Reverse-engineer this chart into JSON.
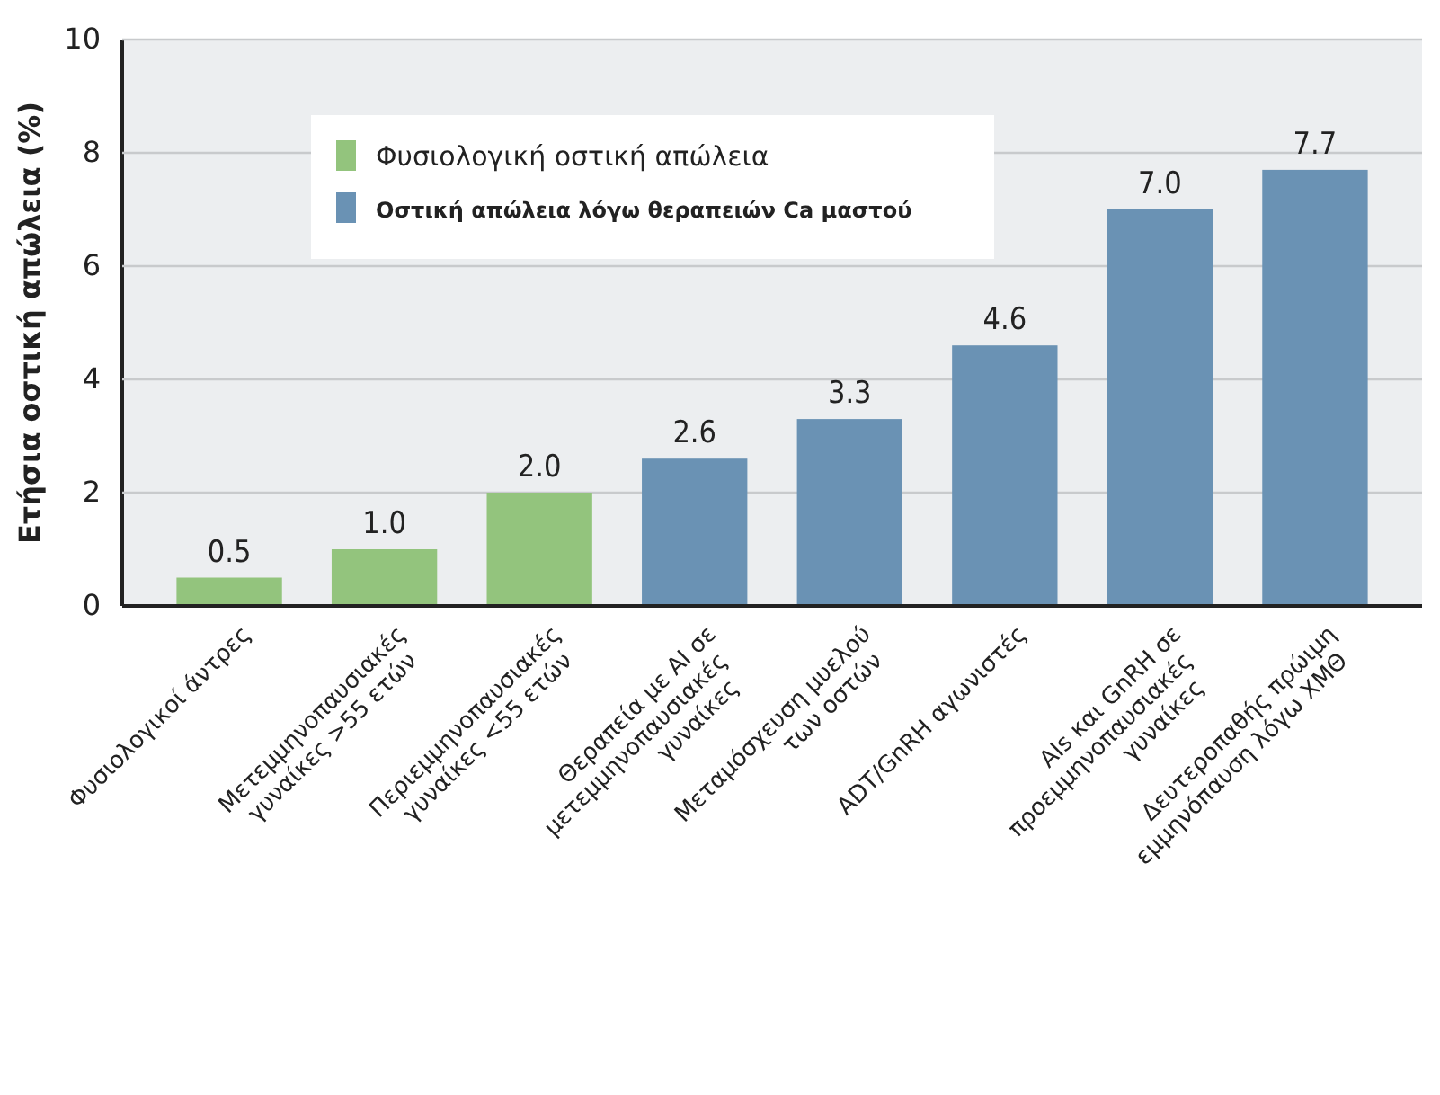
{
  "chart_data": {
    "type": "bar",
    "ylabel": "Ετήσια οστική απώλεια (%)",
    "categories": [
      "Φυσιολογικοί άντρες",
      "Μετεμμηνοπαυσιακές γυναίκες >55 ετών",
      "Περιεμμηνοπαυσιακές γυναίκες <55 ετών",
      "Θεραπεία με AI σε μετεμμηνοπαυσιακές γυναίκες",
      "Μεταμόσχευση μυελού των οστών",
      "ADT/GnRH αγωνιστές",
      "AIs και GnRH σε προεμμηνοπαυσιακές γυναίκες",
      "Δευτεροπαθής πρώιμη εμμηνόπαυση λόγω ΧΜΘ"
    ],
    "series": [
      {
        "name": "Φυσιολογική οστική απώλεια",
        "color": "#93c47d",
        "values": [
          0.5,
          1.0,
          2.0,
          null,
          null,
          null,
          null,
          null
        ],
        "value_labels": [
          "0.5",
          "1.0",
          "2.0",
          null,
          null,
          null,
          null,
          null
        ]
      },
      {
        "name": "Οστική απώλεια λόγω θεραπειών Ca μαστού",
        "color": "#6a92b4",
        "values": [
          null,
          null,
          null,
          2.6,
          3.3,
          4.6,
          7.0,
          7.7
        ],
        "value_labels": [
          null,
          null,
          null,
          "2.6",
          "3.3",
          "4.6",
          "7.0",
          "7.7"
        ]
      }
    ],
    "ylim": [
      0,
      10
    ],
    "yticks": [
      0,
      2,
      4,
      6,
      8,
      10
    ],
    "grid": "y",
    "legend": "top left"
  }
}
